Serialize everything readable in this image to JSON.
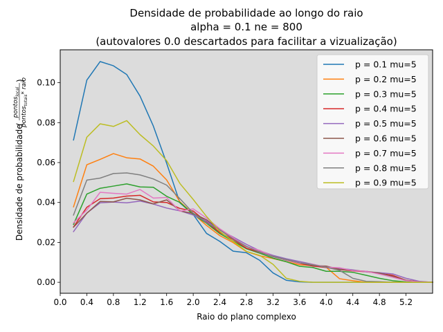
{
  "chart_data": {
    "type": "line",
    "title_lines": [
      "Densidade de probabilidade ao longo do raio",
      "alpha = 0.1 ne = 800",
      "(autovalores 0.0 descartados para facilitar a vizualização)"
    ],
    "xlabel": "Raio do plano complexo",
    "ylabel_prefix": "Densidade de probabilidade",
    "ylabel_fraction": {
      "numerator": "pontos",
      "numerator_sub": "local",
      "denominator": "pontos",
      "denominator_sub": "totais",
      "denominator_suffix": "* raio"
    },
    "xlim": [
      0.0,
      5.6
    ],
    "ylim": [
      -0.0055,
      0.1165
    ],
    "xticks": [
      "0.0",
      "0.4",
      "0.8",
      "1.2",
      "1.6",
      "2.0",
      "2.4",
      "2.8",
      "3.2",
      "3.6",
      "4.0",
      "4.4",
      "4.8",
      "5.2"
    ],
    "yticks": [
      "0.00",
      "0.02",
      "0.04",
      "0.06",
      "0.08",
      "0.10"
    ],
    "grid": false,
    "legend_position": "top-right",
    "background": "#dcdcdc",
    "x": [
      0.2,
      0.4,
      0.6,
      0.8,
      1.0,
      1.2,
      1.4,
      1.6,
      1.8,
      2.0,
      2.2,
      2.4,
      2.6,
      2.8,
      3.0,
      3.2,
      3.4,
      3.6,
      3.8,
      4.0,
      4.2,
      4.4,
      4.6,
      4.8,
      5.0,
      5.2,
      5.4,
      5.6
    ],
    "series": [
      {
        "name": "p = 0.1 mu=5",
        "color": "#1f77b4",
        "values": [
          0.0713,
          0.1013,
          0.1106,
          0.1085,
          0.1041,
          0.0933,
          0.0783,
          0.0597,
          0.0398,
          0.034,
          0.0245,
          0.0205,
          0.0156,
          0.0148,
          0.011,
          0.0047,
          0.001,
          0.0002,
          0.0,
          0.0,
          0.0,
          0.0,
          0.0,
          0.0,
          0.0,
          0.0,
          0.0,
          0.0
        ]
      },
      {
        "name": "p = 0.2 mu=5",
        "color": "#ff7f0e",
        "values": [
          0.0378,
          0.0589,
          0.0616,
          0.0645,
          0.0624,
          0.0618,
          0.0582,
          0.0513,
          0.0403,
          0.0343,
          0.0285,
          0.0234,
          0.0199,
          0.0154,
          0.0133,
          0.0119,
          0.0103,
          0.0088,
          0.0083,
          0.0075,
          0.0018,
          0.0008,
          0.0,
          0.0,
          0.0,
          0.0,
          0.0,
          0.0
        ]
      },
      {
        "name": "p = 0.3 mu=5",
        "color": "#2ca02c",
        "values": [
          0.029,
          0.0442,
          0.0471,
          0.0482,
          0.0493,
          0.0478,
          0.0476,
          0.0431,
          0.04,
          0.034,
          0.0296,
          0.0244,
          0.0206,
          0.0168,
          0.0146,
          0.0121,
          0.0103,
          0.008,
          0.0074,
          0.0055,
          0.0055,
          0.005,
          0.0035,
          0.002,
          0.0008,
          0.0002,
          0.0,
          0.0
        ]
      },
      {
        "name": "p = 0.4 mu=5",
        "color": "#d62728",
        "values": [
          0.0277,
          0.0376,
          0.0419,
          0.0422,
          0.0432,
          0.0436,
          0.0403,
          0.04,
          0.037,
          0.0357,
          0.0302,
          0.025,
          0.0214,
          0.0171,
          0.015,
          0.0131,
          0.0111,
          0.0095,
          0.0081,
          0.0074,
          0.0064,
          0.0057,
          0.0053,
          0.0045,
          0.0035,
          0.001,
          0.0003,
          0.0
        ]
      },
      {
        "name": "p = 0.5 mu=5",
        "color": "#9467bd",
        "values": [
          0.0254,
          0.0347,
          0.0398,
          0.0402,
          0.0398,
          0.0407,
          0.0392,
          0.0372,
          0.0358,
          0.0337,
          0.0307,
          0.0262,
          0.0227,
          0.019,
          0.0158,
          0.0135,
          0.0118,
          0.0104,
          0.009,
          0.0076,
          0.007,
          0.0062,
          0.0053,
          0.0048,
          0.0042,
          0.002,
          0.0005,
          0.0
        ]
      },
      {
        "name": "p = 0.6 mu=5",
        "color": "#8c564b",
        "values": [
          0.0276,
          0.0346,
          0.0405,
          0.0403,
          0.0421,
          0.0413,
          0.0393,
          0.0413,
          0.0358,
          0.0345,
          0.0313,
          0.0265,
          0.0222,
          0.018,
          0.0152,
          0.0128,
          0.0111,
          0.0097,
          0.0084,
          0.0081,
          0.0065,
          0.0059,
          0.0055,
          0.0046,
          0.003,
          0.001,
          0.0002,
          0.0
        ]
      },
      {
        "name": "p = 0.7 mu=5",
        "color": "#e377c2",
        "values": [
          0.0298,
          0.0362,
          0.0451,
          0.0446,
          0.0442,
          0.0465,
          0.0422,
          0.0425,
          0.0356,
          0.0368,
          0.0322,
          0.0268,
          0.0224,
          0.0178,
          0.016,
          0.013,
          0.0112,
          0.0096,
          0.009,
          0.0076,
          0.0073,
          0.0058,
          0.0055,
          0.0041,
          0.0025,
          0.0008,
          0.0002,
          0.0
        ]
      },
      {
        "name": "p = 0.8 mu=5",
        "color": "#7f7f7f",
        "values": [
          0.0337,
          0.0512,
          0.0522,
          0.0545,
          0.0548,
          0.0538,
          0.0518,
          0.0487,
          0.0419,
          0.0347,
          0.0298,
          0.0262,
          0.0217,
          0.018,
          0.015,
          0.013,
          0.0114,
          0.0098,
          0.0088,
          0.0075,
          0.006,
          0.002,
          0.0005,
          0.0003,
          0.0,
          0.0,
          0.0,
          0.0
        ]
      },
      {
        "name": "p = 0.9 mu=5",
        "color": "#bcbd22",
        "values": [
          0.0505,
          0.0727,
          0.0794,
          0.0781,
          0.081,
          0.074,
          0.0683,
          0.061,
          0.0495,
          0.0415,
          0.033,
          0.0255,
          0.0205,
          0.0155,
          0.0135,
          0.009,
          0.002,
          0.0005,
          0.0,
          0.0,
          0.0,
          0.0,
          0.0,
          0.0,
          0.0,
          0.0,
          0.0,
          0.0
        ]
      }
    ]
  }
}
